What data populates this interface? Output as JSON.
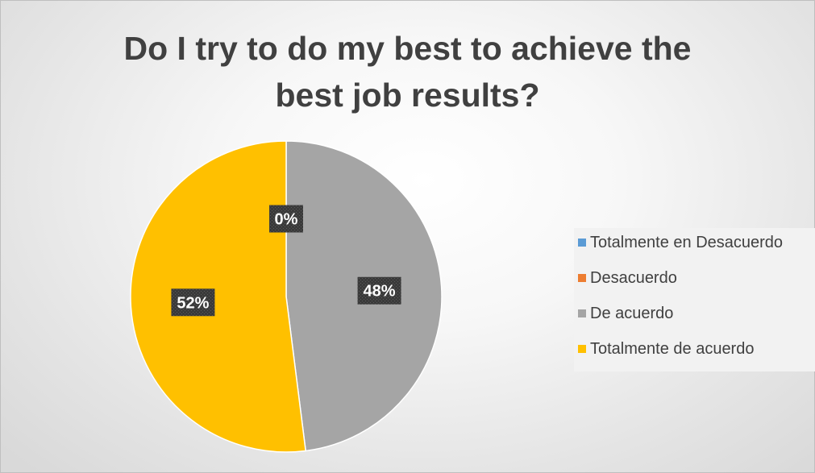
{
  "chart_data": {
    "type": "pie",
    "title": "Do I try to do my best to achieve the\nbest job results?",
    "categories": [
      "Totalmente en Desacuerdo",
      "Desacuerdo",
      "De acuerdo",
      "Totalmente de acuerdo"
    ],
    "values": [
      0,
      0,
      48,
      52
    ],
    "data_labels": [
      "0%",
      "",
      "48%",
      "52%"
    ],
    "colors": [
      "#5b9bd5",
      "#ed7d31",
      "#a5a5a5",
      "#ffc000"
    ],
    "legend_position": "right"
  }
}
